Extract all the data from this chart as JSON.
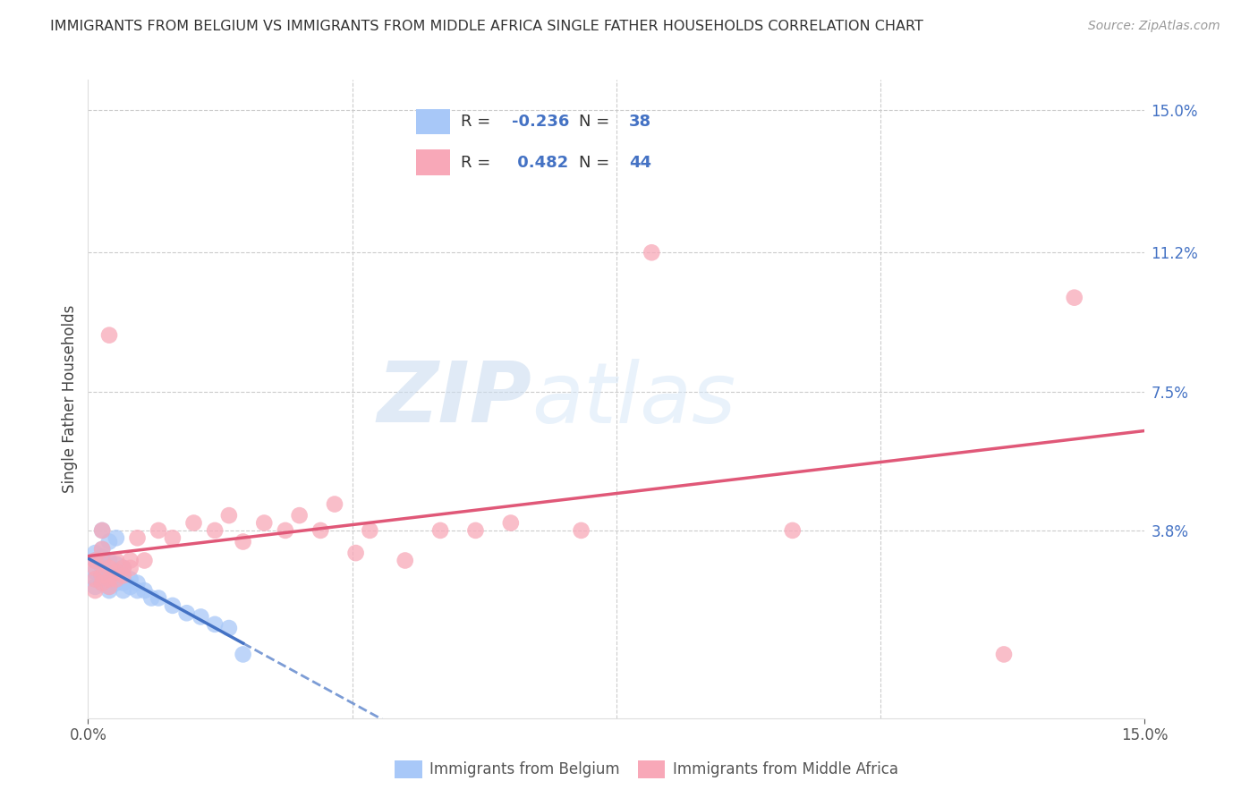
{
  "title": "IMMIGRANTS FROM BELGIUM VS IMMIGRANTS FROM MIDDLE AFRICA SINGLE FATHER HOUSEHOLDS CORRELATION CHART",
  "source": "Source: ZipAtlas.com",
  "ylabel": "Single Father Households",
  "xlim": [
    0.0,
    0.15
  ],
  "ylim": [
    -0.012,
    0.158
  ],
  "belgium_R": -0.236,
  "belgium_N": 38,
  "midafrica_R": 0.482,
  "midafrica_N": 44,
  "belgium_color": "#a8c8f8",
  "midafrica_color": "#f8a8b8",
  "belgium_line_color": "#4472c4",
  "midafrica_line_color": "#e05878",
  "yticks": [
    0.038,
    0.075,
    0.112,
    0.15
  ],
  "ytick_labels": [
    "3.8%",
    "7.5%",
    "11.2%",
    "15.0%"
  ],
  "xtick_labels": [
    "0.0%",
    "15.0%"
  ],
  "xtick_values": [
    0.0,
    0.15
  ],
  "belgium_x": [
    0.001,
    0.001,
    0.001,
    0.001,
    0.001,
    0.002,
    0.002,
    0.002,
    0.002,
    0.002,
    0.002,
    0.003,
    0.003,
    0.003,
    0.003,
    0.003,
    0.003,
    0.004,
    0.004,
    0.004,
    0.004,
    0.005,
    0.005,
    0.005,
    0.005,
    0.006,
    0.006,
    0.007,
    0.007,
    0.008,
    0.009,
    0.01,
    0.012,
    0.014,
    0.016,
    0.018,
    0.02,
    0.022
  ],
  "belgium_y": [
    0.03,
    0.032,
    0.027,
    0.025,
    0.023,
    0.033,
    0.031,
    0.028,
    0.026,
    0.024,
    0.038,
    0.03,
    0.027,
    0.025,
    0.023,
    0.022,
    0.035,
    0.029,
    0.026,
    0.024,
    0.036,
    0.028,
    0.026,
    0.024,
    0.022,
    0.025,
    0.023,
    0.024,
    0.022,
    0.022,
    0.02,
    0.02,
    0.018,
    0.016,
    0.015,
    0.013,
    0.012,
    0.005
  ],
  "midafrica_x": [
    0.001,
    0.001,
    0.001,
    0.001,
    0.002,
    0.002,
    0.002,
    0.002,
    0.002,
    0.003,
    0.003,
    0.003,
    0.003,
    0.004,
    0.004,
    0.004,
    0.005,
    0.005,
    0.006,
    0.006,
    0.007,
    0.008,
    0.01,
    0.012,
    0.015,
    0.018,
    0.02,
    0.022,
    0.025,
    0.028,
    0.03,
    0.033,
    0.035,
    0.038,
    0.04,
    0.045,
    0.05,
    0.055,
    0.06,
    0.07,
    0.08,
    0.1,
    0.13,
    0.14
  ],
  "midafrica_y": [
    0.028,
    0.025,
    0.022,
    0.03,
    0.033,
    0.03,
    0.026,
    0.024,
    0.038,
    0.028,
    0.025,
    0.023,
    0.09,
    0.03,
    0.027,
    0.025,
    0.028,
    0.026,
    0.03,
    0.028,
    0.036,
    0.03,
    0.038,
    0.036,
    0.04,
    0.038,
    0.042,
    0.035,
    0.04,
    0.038,
    0.042,
    0.038,
    0.045,
    0.032,
    0.038,
    0.03,
    0.038,
    0.038,
    0.04,
    0.038,
    0.112,
    0.038,
    0.005,
    0.1
  ]
}
